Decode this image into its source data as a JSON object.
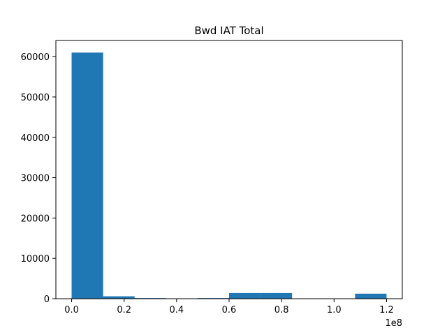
{
  "chart_data": {
    "type": "bar",
    "title": "Bwd IAT Total",
    "xlabel": "",
    "ylabel": "",
    "x_offset_label": "1e8",
    "xlim": [
      -0.06,
      1.26
    ],
    "ylim": [
      0,
      64000
    ],
    "x_ticks": [
      0.0,
      0.2,
      0.4,
      0.6,
      0.8,
      1.0,
      1.2
    ],
    "x_tick_labels": [
      "0.0",
      "0.2",
      "0.4",
      "0.6",
      "0.8",
      "1.0",
      "1.2"
    ],
    "y_ticks": [
      0,
      10000,
      20000,
      30000,
      40000,
      50000,
      60000
    ],
    "y_tick_labels": [
      "0",
      "10000",
      "20000",
      "30000",
      "40000",
      "50000",
      "60000"
    ],
    "bin_edges": [
      0.0,
      0.12,
      0.24,
      0.36,
      0.48,
      0.6,
      0.72,
      0.84,
      0.96,
      1.08,
      1.2
    ],
    "values": [
      61000,
      600,
      150,
      30,
      150,
      1400,
      1400,
      0,
      0,
      1250
    ],
    "bar_color": "#1f77b4",
    "grid": false
  }
}
